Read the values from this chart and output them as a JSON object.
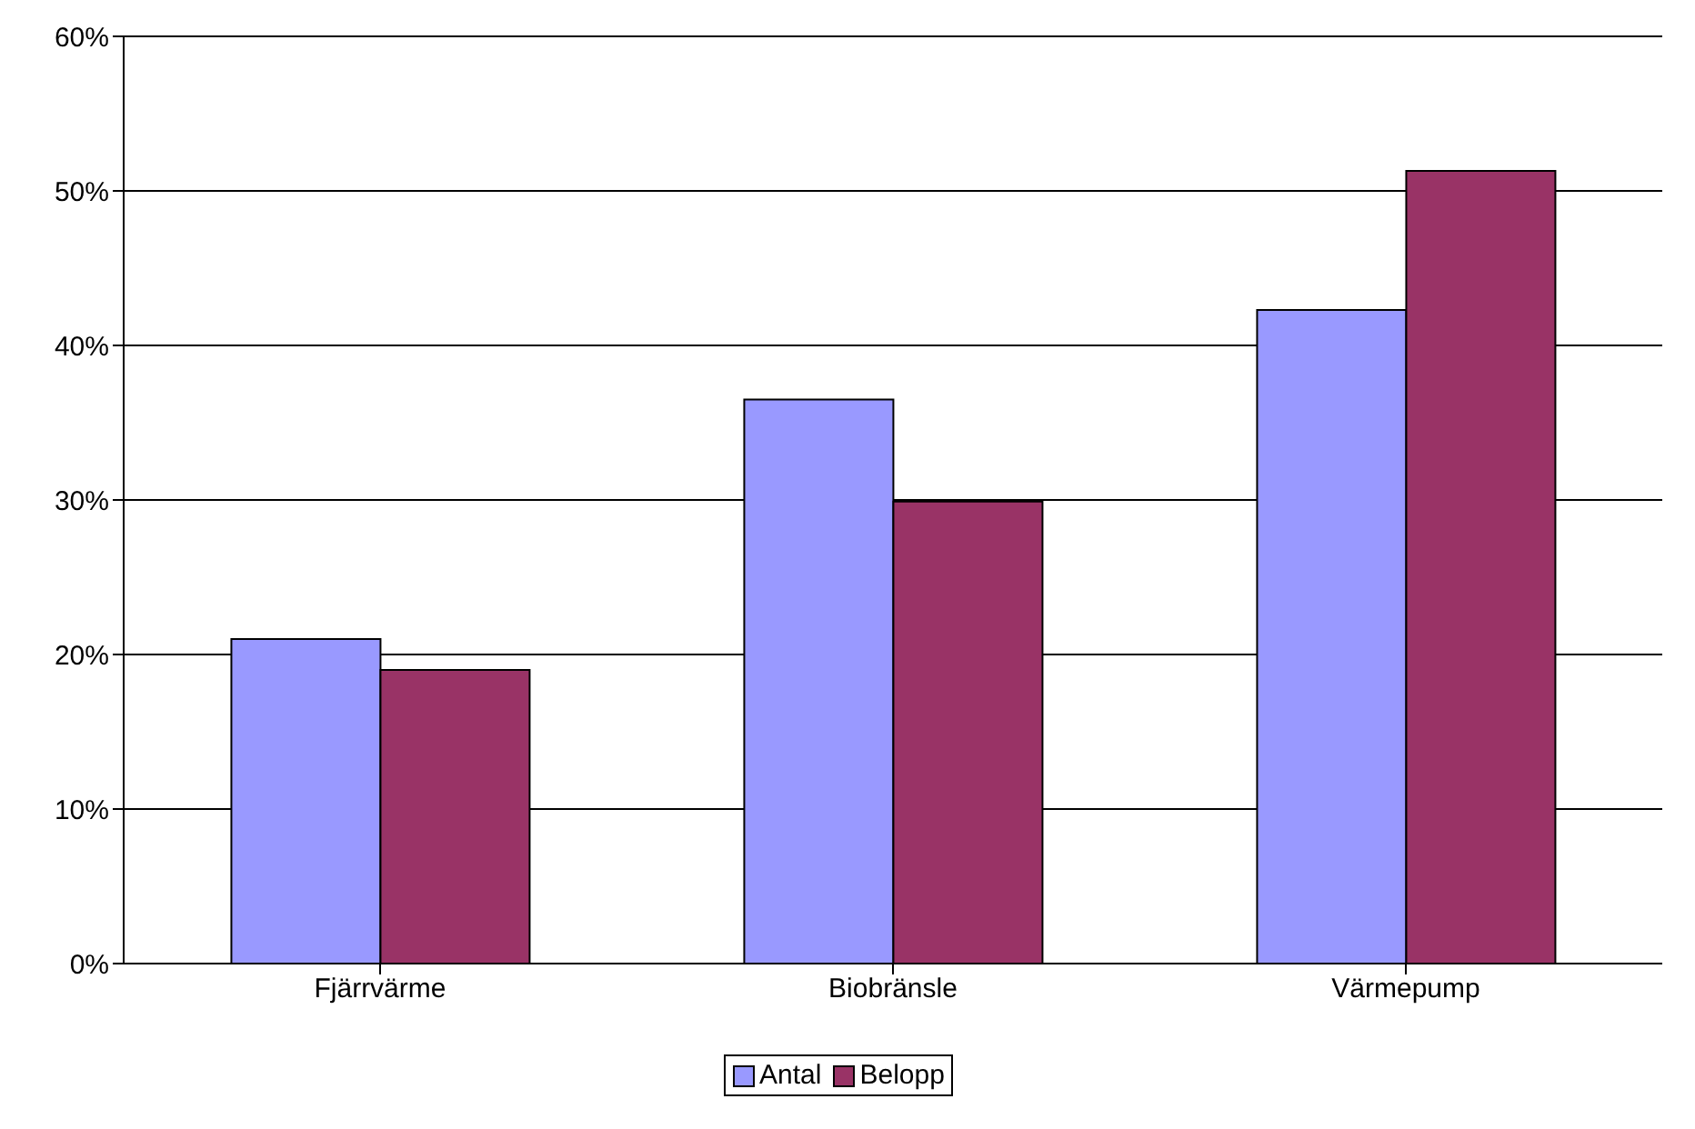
{
  "chart_data": {
    "type": "bar",
    "categories": [
      "Fjärrvärme",
      "Biobränsle",
      "Värmepump"
    ],
    "series": [
      {
        "name": "Antal",
        "color": "#9999ff",
        "values": [
          21,
          36.5,
          42.3
        ]
      },
      {
        "name": "Belopp",
        "color": "#993366",
        "values": [
          19,
          29.9,
          51.3
        ]
      }
    ],
    "ylim": [
      0,
      60
    ],
    "yticks": [
      {
        "value": 0,
        "label": "0%"
      },
      {
        "value": 10,
        "label": "10%"
      },
      {
        "value": 20,
        "label": "20%"
      },
      {
        "value": 30,
        "label": "30%"
      },
      {
        "value": 40,
        "label": "40%"
      },
      {
        "value": 50,
        "label": "50%"
      },
      {
        "value": 60,
        "label": "60%"
      }
    ],
    "grid": "y",
    "legend": "bottom"
  }
}
